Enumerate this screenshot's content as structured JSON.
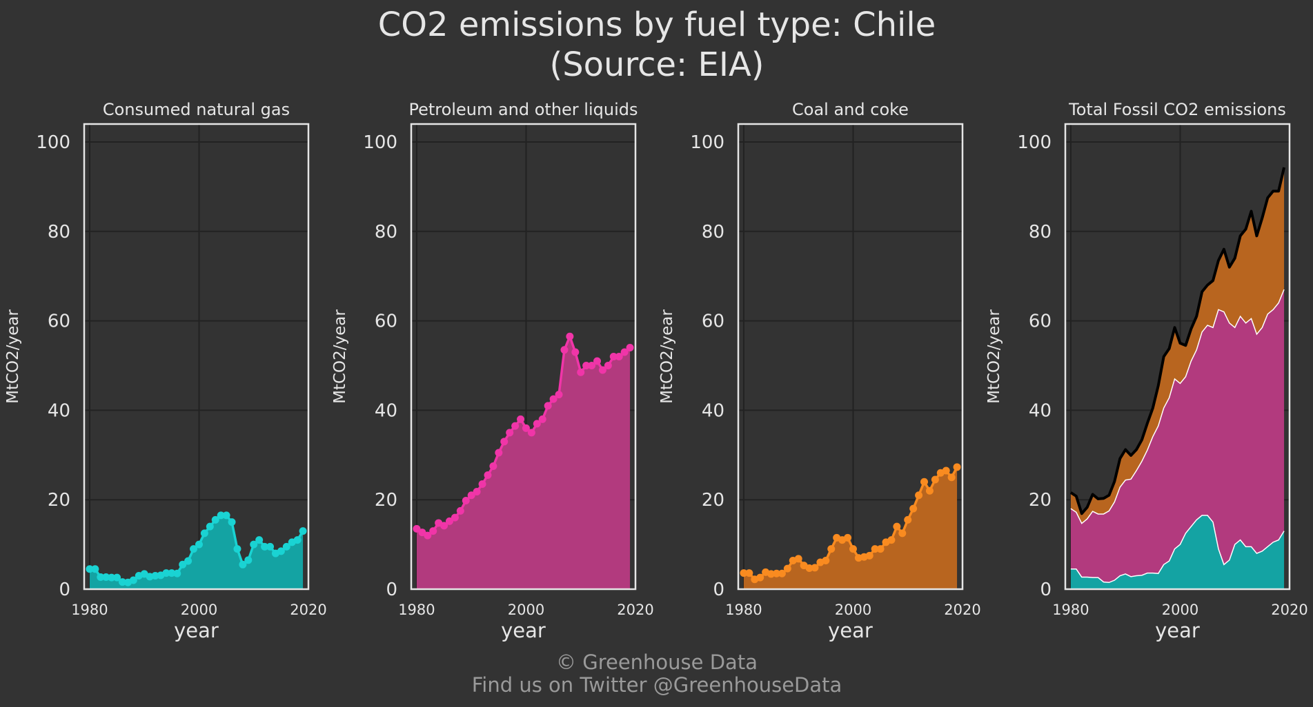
{
  "title_line1": "CO2 emissions by fuel type: Chile",
  "title_line2": "(Source: EIA)",
  "footer_line1": "© Greenhouse Data",
  "footer_line2": "Find us on Twitter @GreenhouseData",
  "colors": {
    "background": "#333333",
    "grid": "#222222",
    "frame": "#e6e6e6",
    "gas": "#1ad3d3",
    "gas_fill": "#14a3a3",
    "petroleum": "#f035a8",
    "petroleum_fill": "#b23a7e",
    "coal": "#f98b20",
    "coal_fill": "#b8651f",
    "total_line": "#000000"
  },
  "chart_data": [
    {
      "type": "area",
      "title": "Consumed natural gas",
      "xlabel": "year",
      "ylabel": "MtCO2/year",
      "xlim": [
        1979,
        2020
      ],
      "ylim": [
        0,
        104
      ],
      "xticks": [
        1980,
        2000,
        2020
      ],
      "yticks": [
        0,
        20,
        40,
        60,
        80,
        100
      ],
      "grid": true,
      "x": [
        1980,
        1981,
        1982,
        1983,
        1984,
        1985,
        1986,
        1987,
        1988,
        1989,
        1990,
        1991,
        1992,
        1993,
        1994,
        1995,
        1996,
        1997,
        1998,
        1999,
        2000,
        2001,
        2002,
        2003,
        2004,
        2005,
        2006,
        2007,
        2008,
        2009,
        2010,
        2011,
        2012,
        2013,
        2014,
        2015,
        2016,
        2017,
        2018,
        2019
      ],
      "series": [
        {
          "color": "#1ad3d3",
          "values": [
            4.5,
            4.5,
            2.7,
            2.7,
            2.6,
            2.6,
            1.6,
            1.5,
            2.0,
            3.0,
            3.4,
            2.8,
            3.0,
            3.1,
            3.6,
            3.6,
            3.5,
            5.5,
            6.3,
            9.0,
            10.0,
            12.5,
            14.0,
            15.5,
            16.5,
            16.5,
            15.0,
            9.0,
            5.5,
            6.5,
            10.0,
            11.0,
            9.5,
            9.5,
            8.0,
            8.5,
            9.5,
            10.5,
            11.0,
            13.0
          ]
        }
      ]
    },
    {
      "type": "area",
      "title": "Petroleum and other liquids",
      "xlabel": "year",
      "ylabel": "MtCO2/year",
      "xlim": [
        1979,
        2020
      ],
      "ylim": [
        0,
        104
      ],
      "xticks": [
        1980,
        2000,
        2020
      ],
      "yticks": [
        0,
        20,
        40,
        60,
        80,
        100
      ],
      "grid": true,
      "x": [
        1980,
        1981,
        1982,
        1983,
        1984,
        1985,
        1986,
        1987,
        1988,
        1989,
        1990,
        1991,
        1992,
        1993,
        1994,
        1995,
        1996,
        1997,
        1998,
        1999,
        2000,
        2001,
        2002,
        2003,
        2004,
        2005,
        2006,
        2007,
        2008,
        2009,
        2010,
        2011,
        2012,
        2013,
        2014,
        2015,
        2016,
        2017,
        2018,
        2019
      ],
      "series": [
        {
          "color": "#f035a8",
          "values": [
            13.5,
            12.7,
            12.0,
            13.0,
            14.8,
            14.2,
            15.2,
            16.0,
            17.5,
            19.8,
            21.0,
            21.8,
            23.5,
            25.5,
            27.5,
            30.5,
            33.0,
            35.0,
            36.5,
            38.0,
            36.0,
            35.0,
            37.0,
            38.0,
            41.0,
            42.5,
            43.5,
            53.5,
            56.5,
            53.0,
            48.5,
            50.0,
            50.0,
            51.0,
            49.0,
            50.0,
            52.0,
            52.0,
            53.0,
            54.0
          ]
        }
      ]
    },
    {
      "type": "area",
      "title": "Coal and coke",
      "xlabel": "year",
      "ylabel": "MtCO2/year",
      "xlim": [
        1979,
        2020
      ],
      "ylim": [
        0,
        104
      ],
      "xticks": [
        1980,
        2000,
        2020
      ],
      "yticks": [
        0,
        20,
        40,
        60,
        80,
        100
      ],
      "grid": true,
      "x": [
        1980,
        1981,
        1982,
        1983,
        1984,
        1985,
        1986,
        1987,
        1988,
        1989,
        1990,
        1991,
        1992,
        1993,
        1994,
        1995,
        1996,
        1997,
        1998,
        1999,
        2000,
        2001,
        2002,
        2003,
        2004,
        2005,
        2006,
        2007,
        2008,
        2009,
        2010,
        2011,
        2012,
        2013,
        2014,
        2015,
        2016,
        2017,
        2018,
        2019
      ],
      "series": [
        {
          "color": "#f98b20",
          "values": [
            3.6,
            3.6,
            2.2,
            2.6,
            3.8,
            3.4,
            3.5,
            3.5,
            4.6,
            6.4,
            6.8,
            5.3,
            4.7,
            4.8,
            6.0,
            6.4,
            9.0,
            11.5,
            11.0,
            11.5,
            9.0,
            7.0,
            7.2,
            7.5,
            9.0,
            9.0,
            10.5,
            11.0,
            14.0,
            12.5,
            15.5,
            18.0,
            21.0,
            24.0,
            22.0,
            24.5,
            26.0,
            26.5,
            25.0,
            27.3
          ]
        }
      ]
    },
    {
      "type": "area",
      "title": "Total Fossil CO2 emissions",
      "xlabel": "year",
      "ylabel": "MtCO2/year",
      "xlim": [
        1979,
        2020
      ],
      "ylim": [
        0,
        104
      ],
      "xticks": [
        1980,
        2000,
        2020
      ],
      "yticks": [
        0,
        20,
        40,
        60,
        80,
        100
      ],
      "grid": true,
      "stacked": true,
      "x": [
        1980,
        1981,
        1982,
        1983,
        1984,
        1985,
        1986,
        1987,
        1988,
        1989,
        1990,
        1991,
        1992,
        1993,
        1994,
        1995,
        1996,
        1997,
        1998,
        1999,
        2000,
        2001,
        2002,
        2003,
        2004,
        2005,
        2006,
        2007,
        2008,
        2009,
        2010,
        2011,
        2012,
        2013,
        2014,
        2015,
        2016,
        2017,
        2018,
        2019
      ],
      "series": [
        {
          "color": "#14a3a3",
          "values": [
            4.5,
            4.5,
            2.7,
            2.7,
            2.6,
            2.6,
            1.6,
            1.5,
            2.0,
            3.0,
            3.4,
            2.8,
            3.0,
            3.1,
            3.6,
            3.6,
            3.5,
            5.5,
            6.3,
            9.0,
            10.0,
            12.5,
            14.0,
            15.5,
            16.5,
            16.5,
            15.0,
            9.0,
            5.5,
            6.5,
            10.0,
            11.0,
            9.5,
            9.5,
            8.0,
            8.5,
            9.5,
            10.5,
            11.0,
            13.0
          ]
        },
        {
          "color": "#b23a7e",
          "values": [
            13.5,
            12.7,
            12.0,
            13.0,
            14.8,
            14.2,
            15.2,
            16.0,
            17.5,
            19.8,
            21.0,
            21.8,
            23.5,
            25.5,
            27.5,
            30.5,
            33.0,
            35.0,
            36.5,
            38.0,
            36.0,
            35.0,
            37.0,
            38.0,
            41.0,
            42.5,
            43.5,
            53.5,
            56.5,
            53.0,
            48.5,
            50.0,
            50.0,
            51.0,
            49.0,
            50.0,
            52.0,
            52.0,
            53.0,
            54.0
          ]
        },
        {
          "color": "#b8651f",
          "values": [
            3.6,
            3.6,
            2.2,
            2.6,
            3.8,
            3.4,
            3.5,
            3.5,
            4.6,
            6.4,
            6.8,
            5.3,
            4.7,
            4.8,
            6.0,
            6.4,
            9.0,
            11.5,
            11.0,
            11.5,
            9.0,
            7.0,
            7.2,
            7.5,
            9.0,
            9.0,
            10.5,
            11.0,
            14.0,
            12.5,
            15.5,
            18.0,
            21.0,
            24.0,
            22.0,
            24.5,
            26.0,
            26.5,
            25.0,
            27.3
          ]
        }
      ]
    }
  ]
}
